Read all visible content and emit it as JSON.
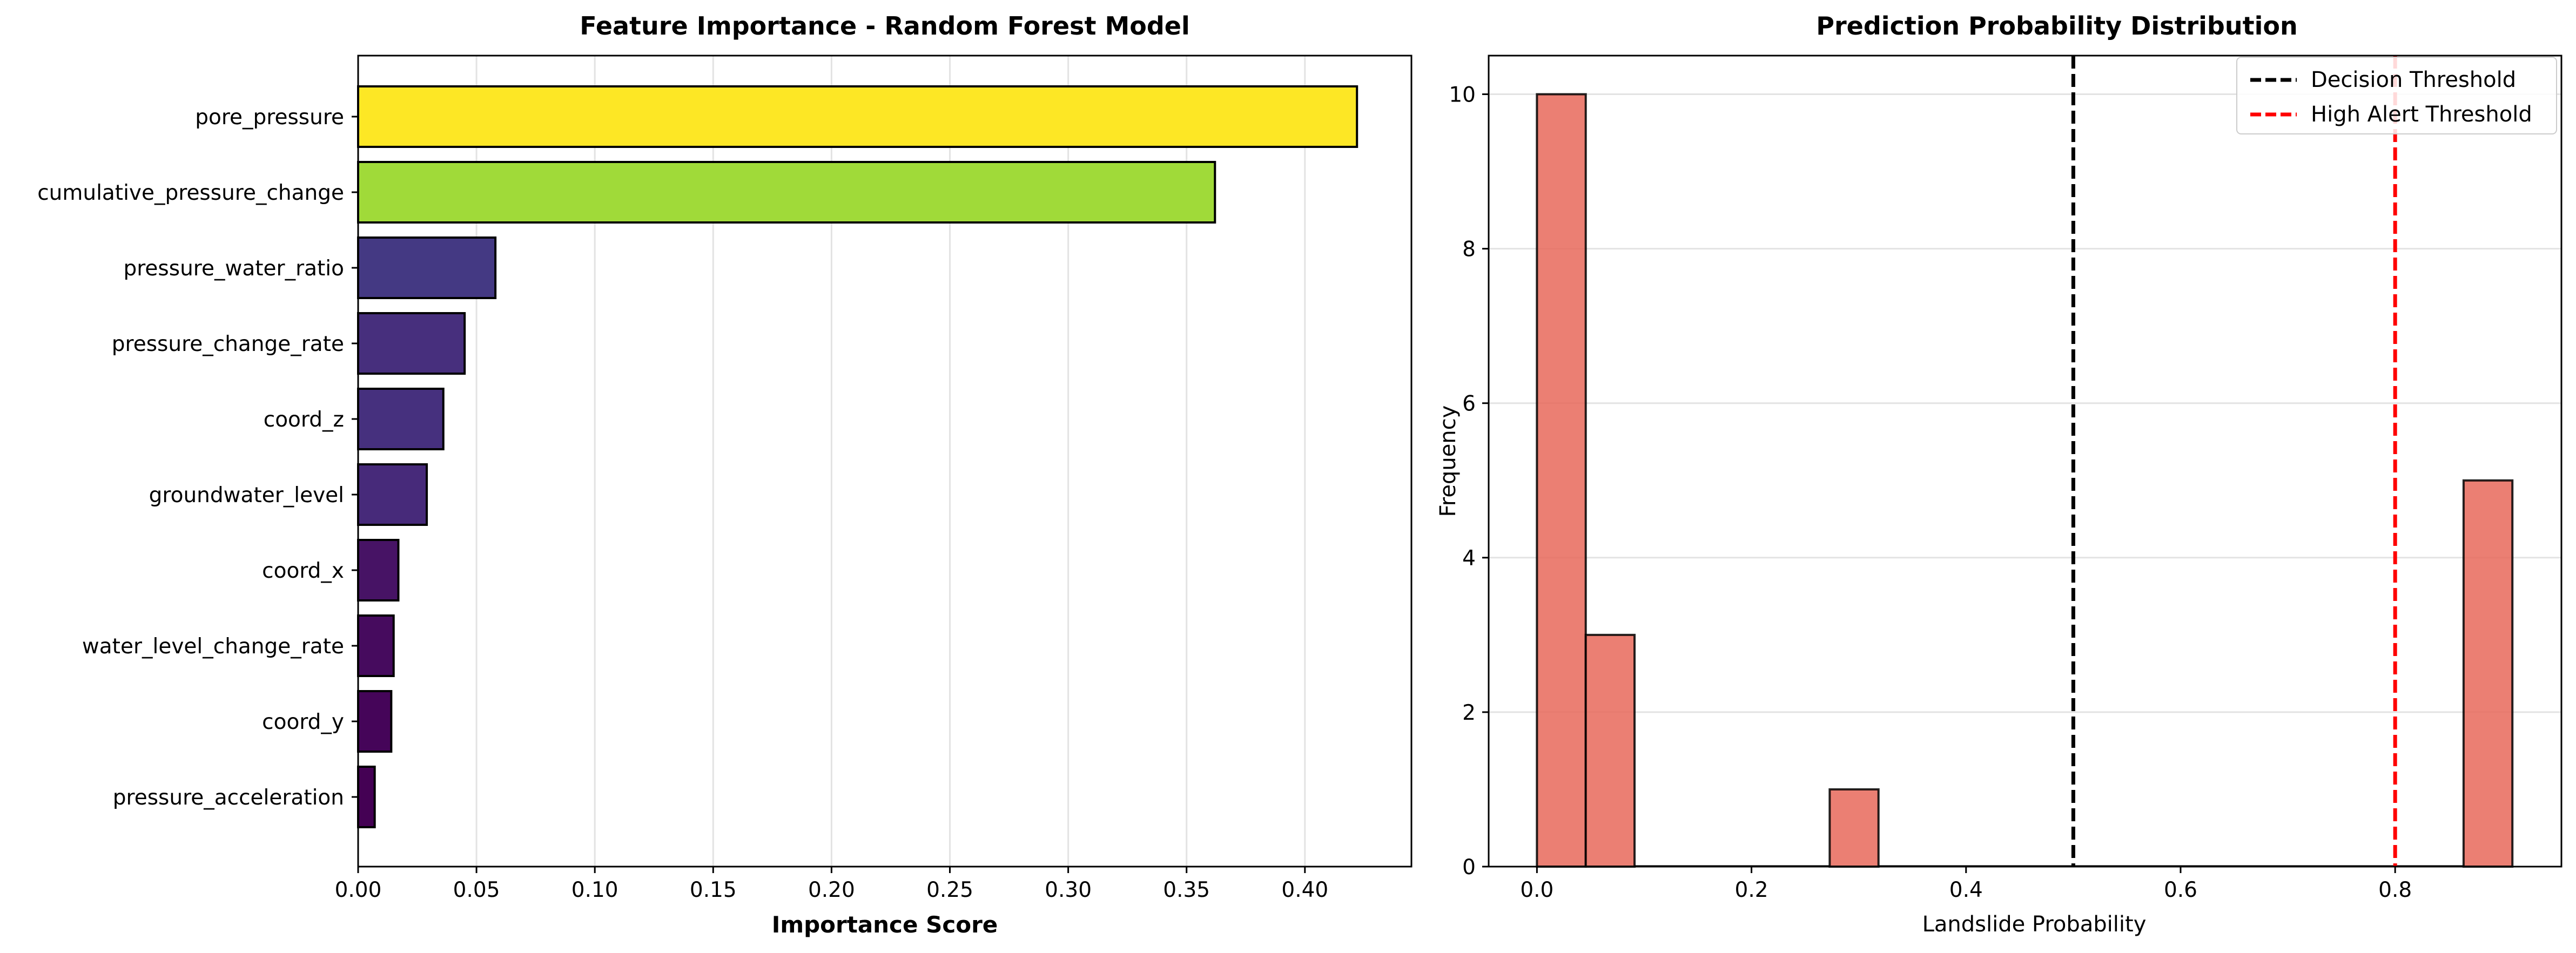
{
  "chart_data": [
    {
      "type": "bar",
      "orientation": "horizontal",
      "title": "Feature Importance - Random Forest Model",
      "xlabel": "Importance Score",
      "ylabel": "",
      "xlim": [
        0,
        0.445
      ],
      "xticks": [
        "0.00",
        "0.05",
        "0.10",
        "0.15",
        "0.20",
        "0.25",
        "0.30",
        "0.35",
        "0.40"
      ],
      "grid": "x",
      "categories": [
        "pore_pressure",
        "cumulative_pressure_change",
        "pressure_water_ratio",
        "pressure_change_rate",
        "coord_z",
        "groundwater_level",
        "coord_x",
        "water_level_change_rate",
        "coord_y",
        "pressure_acceleration"
      ],
      "values": [
        0.422,
        0.362,
        0.058,
        0.045,
        0.036,
        0.029,
        0.017,
        0.015,
        0.014,
        0.007
      ],
      "colors": [
        "#fde725",
        "#a0da39",
        "#443983",
        "#472f7d",
        "#46307e",
        "#472a7a",
        "#471365",
        "#460b5e",
        "#450559",
        "#440154"
      ]
    },
    {
      "type": "bar",
      "subtype": "histogram",
      "title": "Prediction Probability Distribution",
      "xlabel": "Landslide Probability",
      "ylabel": "Frequency",
      "xlim": [
        -0.045,
        0.955
      ],
      "ylim": [
        0,
        10.5
      ],
      "xticks": [
        "0.0",
        "0.2",
        "0.4",
        "0.6",
        "0.8"
      ],
      "yticks": [
        "0",
        "2",
        "4",
        "6",
        "8",
        "10"
      ],
      "grid": "y",
      "bar_color": "#e8685b",
      "bins": [
        {
          "start": 0.0,
          "end": 0.0455,
          "count": 10
        },
        {
          "start": 0.0455,
          "end": 0.091,
          "count": 3
        },
        {
          "start": 0.091,
          "end": 0.2729,
          "count": 0
        },
        {
          "start": 0.2729,
          "end": 0.3184,
          "count": 1
        },
        {
          "start": 0.3184,
          "end": 0.8638,
          "count": 0
        },
        {
          "start": 0.8638,
          "end": 0.9093,
          "count": 5
        }
      ],
      "thresholds": [
        {
          "name": "Decision Threshold",
          "value": 0.5,
          "color": "#000000"
        },
        {
          "name": "High Alert Threshold",
          "value": 0.8,
          "color": "#ff0000"
        }
      ],
      "legend": "top-right"
    }
  ]
}
